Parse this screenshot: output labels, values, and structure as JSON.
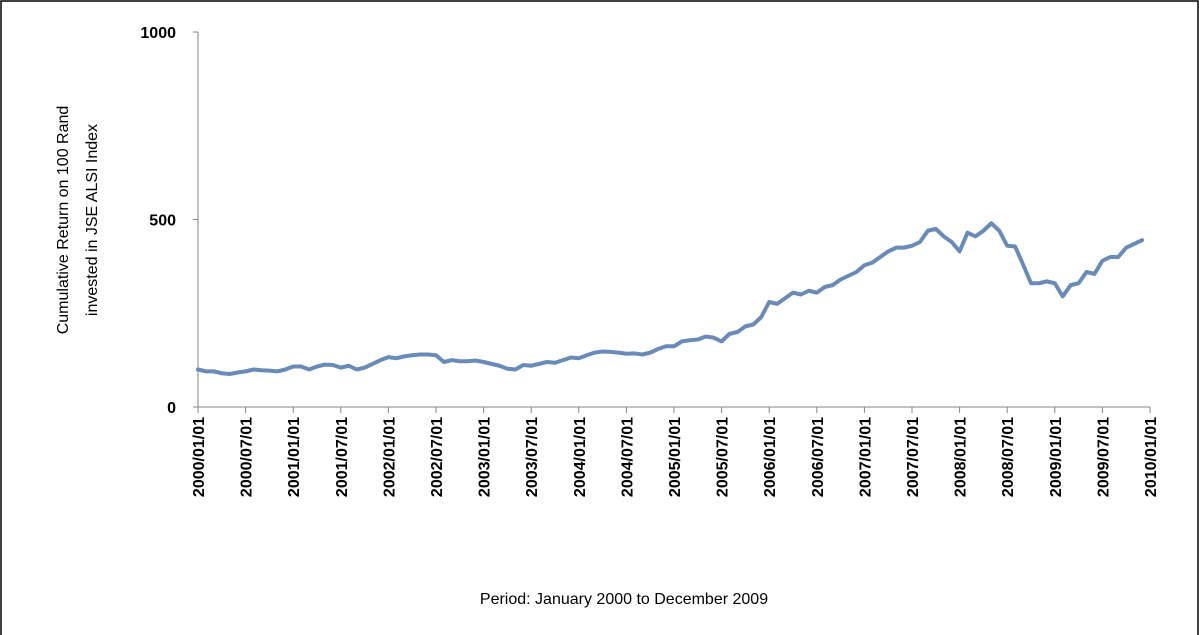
{
  "chart_data": {
    "type": "line",
    "xlabel": "Period: January 2000 to December 2009",
    "ylabel": [
      "Cumulative Return on 100 Rand",
      "invested  in JSE ALSI Index"
    ],
    "x": [
      "2000/01/01",
      "2000/02/01",
      "2000/03/01",
      "2000/04/01",
      "2000/05/01",
      "2000/06/01",
      "2000/07/01",
      "2000/08/01",
      "2000/09/01",
      "2000/10/01",
      "2000/11/01",
      "2000/12/01",
      "2001/01/01",
      "2001/02/01",
      "2001/03/01",
      "2001/04/01",
      "2001/05/01",
      "2001/06/01",
      "2001/07/01",
      "2001/08/01",
      "2001/09/01",
      "2001/10/01",
      "2001/11/01",
      "2001/12/01",
      "2002/01/01",
      "2002/02/01",
      "2002/03/01",
      "2002/04/01",
      "2002/05/01",
      "2002/06/01",
      "2002/07/01",
      "2002/08/01",
      "2002/09/01",
      "2002/10/01",
      "2002/11/01",
      "2002/12/01",
      "2003/01/01",
      "2003/02/01",
      "2003/03/01",
      "2003/04/01",
      "2003/05/01",
      "2003/06/01",
      "2003/07/01",
      "2003/08/01",
      "2003/09/01",
      "2003/10/01",
      "2003/11/01",
      "2003/12/01",
      "2004/01/01",
      "2004/02/01",
      "2004/03/01",
      "2004/04/01",
      "2004/05/01",
      "2004/06/01",
      "2004/07/01",
      "2004/08/01",
      "2004/09/01",
      "2004/10/01",
      "2004/11/01",
      "2004/12/01",
      "2005/01/01",
      "2005/02/01",
      "2005/03/01",
      "2005/04/01",
      "2005/05/01",
      "2005/06/01",
      "2005/07/01",
      "2005/08/01",
      "2005/09/01",
      "2005/10/01",
      "2005/11/01",
      "2005/12/01",
      "2006/01/01",
      "2006/02/01",
      "2006/03/01",
      "2006/04/01",
      "2006/05/01",
      "2006/06/01",
      "2006/07/01",
      "2006/08/01",
      "2006/09/01",
      "2006/10/01",
      "2006/11/01",
      "2006/12/01",
      "2007/01/01",
      "2007/02/01",
      "2007/03/01",
      "2007/04/01",
      "2007/05/01",
      "2007/06/01",
      "2007/07/01",
      "2007/08/01",
      "2007/09/01",
      "2007/10/01",
      "2007/11/01",
      "2007/12/01",
      "2008/01/01",
      "2008/02/01",
      "2008/03/01",
      "2008/04/01",
      "2008/05/01",
      "2008/06/01",
      "2008/07/01",
      "2008/08/01",
      "2008/09/01",
      "2008/10/01",
      "2008/11/01",
      "2008/12/01",
      "2009/01/01",
      "2009/02/01",
      "2009/03/01",
      "2009/04/01",
      "2009/05/01",
      "2009/06/01",
      "2009/07/01",
      "2009/08/01",
      "2009/09/01",
      "2009/10/01",
      "2009/11/01",
      "2009/12/01"
    ],
    "series": [
      {
        "color": "#6a8bb8",
        "values": [
          100,
          95,
          95,
          90,
          88,
          92,
          95,
          100,
          98,
          97,
          95,
          100,
          108,
          108,
          100,
          108,
          113,
          112,
          105,
          110,
          100,
          105,
          115,
          125,
          133,
          130,
          135,
          138,
          140,
          140,
          138,
          120,
          125,
          122,
          122,
          124,
          120,
          115,
          110,
          102,
          100,
          112,
          110,
          115,
          120,
          118,
          125,
          132,
          130,
          138,
          145,
          148,
          147,
          145,
          142,
          143,
          140,
          145,
          155,
          162,
          162,
          175,
          178,
          180,
          188,
          185,
          175,
          195,
          200,
          215,
          220,
          240,
          280,
          275,
          290,
          305,
          300,
          310,
          305,
          320,
          325,
          340,
          350,
          360,
          378,
          385,
          400,
          415,
          425,
          425,
          430,
          440,
          470,
          475,
          455,
          440,
          415,
          465,
          455,
          470,
          490,
          470,
          430,
          428,
          380,
          330,
          330,
          335,
          330,
          295,
          325,
          330,
          360,
          355,
          390,
          400,
          400,
          425,
          435,
          445
        ]
      }
    ],
    "xlim": [
      "2000/01/01",
      "2010/01/01"
    ],
    "xticks": [
      "2000/01/01",
      "2000/07/01",
      "2001/01/01",
      "2001/07/01",
      "2002/01/01",
      "2002/07/01",
      "2003/01/01",
      "2003/07/01",
      "2004/01/01",
      "2004/07/01",
      "2005/01/01",
      "2005/07/01",
      "2006/01/01",
      "2006/07/01",
      "2007/01/01",
      "2007/07/01",
      "2008/01/01",
      "2008/07/01",
      "2009/01/01",
      "2009/07/01",
      "2010/01/01"
    ],
    "ylim": [
      0,
      1000
    ],
    "yticks": [
      0,
      500,
      1000
    ],
    "grid": false
  }
}
